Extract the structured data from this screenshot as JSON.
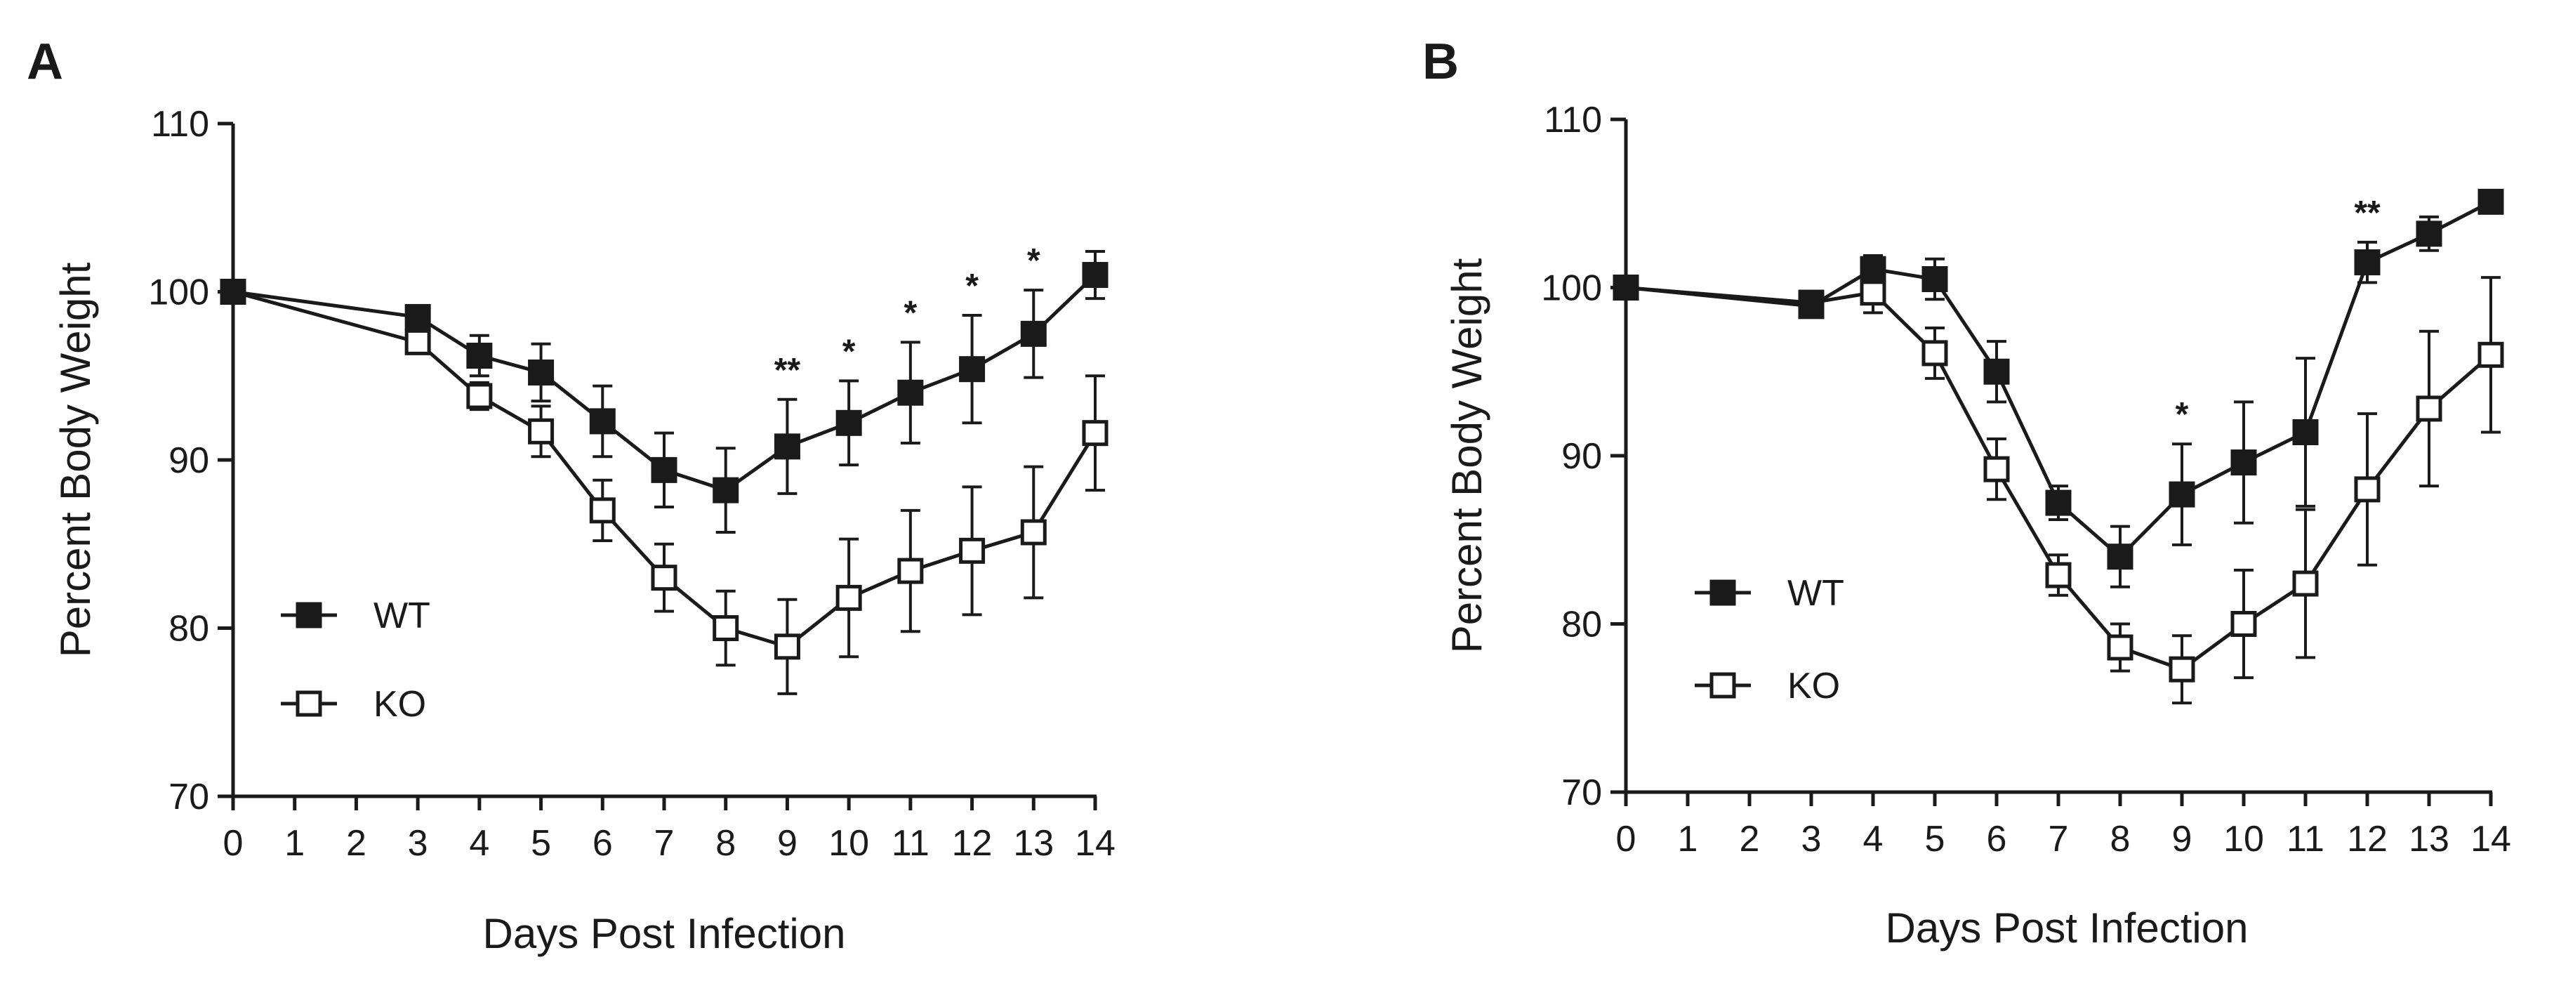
{
  "chart_data": [
    {
      "panel": "A",
      "type": "line",
      "xlabel": "Days Post Infection",
      "ylabel": "Percent Body Weight",
      "xlim": [
        0,
        14
      ],
      "ylim": [
        70,
        110
      ],
      "xticks": [
        "0",
        "1",
        "2",
        "3",
        "4",
        "5",
        "6",
        "7",
        "8",
        "9",
        "10",
        "11",
        "12",
        "13",
        "14"
      ],
      "yticks": [
        "70",
        "80",
        "90",
        "100",
        "110"
      ],
      "legend": [
        "WT",
        "KO"
      ],
      "legend_position": "lower-left",
      "series": [
        {
          "name": "WT",
          "marker": "filled-square",
          "x": [
            0,
            3,
            4,
            5,
            6,
            7,
            8,
            9,
            10,
            11,
            12,
            13,
            14
          ],
          "values": [
            100,
            98.5,
            96.2,
            95.2,
            92.3,
            89.4,
            88.2,
            90.8,
            92.2,
            94.0,
            95.4,
            97.5,
            101.0
          ],
          "err": [
            0,
            0.5,
            1.2,
            1.7,
            2.1,
            2.2,
            2.5,
            2.8,
            2.5,
            3.0,
            3.2,
            2.6,
            1.4
          ]
        },
        {
          "name": "KO",
          "marker": "open-square",
          "x": [
            0,
            3,
            4,
            5,
            6,
            7,
            8,
            9,
            10,
            11,
            12,
            13,
            14
          ],
          "values": [
            100,
            97.0,
            93.8,
            91.7,
            87.0,
            83.0,
            80.0,
            78.9,
            81.8,
            83.4,
            84.6,
            85.7,
            91.6
          ],
          "err": [
            0,
            0.5,
            0.8,
            1.5,
            1.8,
            2.0,
            2.2,
            2.8,
            3.5,
            3.6,
            3.8,
            3.9,
            3.4
          ]
        }
      ],
      "annotations": [
        {
          "x": 9,
          "label": "**"
        },
        {
          "x": 10,
          "label": "*"
        },
        {
          "x": 11,
          "label": "*"
        },
        {
          "x": 12,
          "label": "*"
        },
        {
          "x": 13,
          "label": "*"
        }
      ]
    },
    {
      "panel": "B",
      "type": "line",
      "xlabel": "Days Post Infection",
      "ylabel": "Percent Body Weight",
      "xlim": [
        0,
        14
      ],
      "ylim": [
        70,
        110
      ],
      "xticks": [
        "0",
        "1",
        "2",
        "3",
        "4",
        "5",
        "6",
        "7",
        "8",
        "9",
        "10",
        "11",
        "12",
        "13",
        "14"
      ],
      "yticks": [
        "70",
        "80",
        "90",
        "100",
        "110"
      ],
      "legend": [
        "WT",
        "KO"
      ],
      "legend_position": "lower-left",
      "series": [
        {
          "name": "WT",
          "marker": "filled-square",
          "x": [
            0,
            3,
            4,
            5,
            6,
            7,
            8,
            9,
            10,
            11,
            12,
            13,
            14
          ],
          "values": [
            100,
            98.9,
            101.1,
            100.5,
            95.0,
            87.2,
            84.0,
            87.7,
            89.6,
            91.4,
            101.5,
            103.2,
            105.1
          ],
          "err": [
            0,
            0.5,
            0.8,
            1.2,
            1.8,
            1.0,
            1.8,
            3.0,
            3.6,
            4.4,
            1.2,
            1.0,
            0.6
          ]
        },
        {
          "name": "KO",
          "marker": "open-square",
          "x": [
            0,
            3,
            4,
            5,
            6,
            7,
            8,
            9,
            10,
            11,
            12,
            13,
            14
          ],
          "values": [
            100,
            99.1,
            99.7,
            96.1,
            89.2,
            82.9,
            78.6,
            77.3,
            80.0,
            82.4,
            88.0,
            92.8,
            96.0
          ],
          "err": [
            0,
            0.5,
            1.2,
            1.5,
            1.8,
            1.2,
            1.4,
            2.0,
            3.2,
            4.4,
            4.5,
            4.6,
            4.6
          ]
        }
      ],
      "annotations": [
        {
          "x": 9,
          "label": "*"
        },
        {
          "x": 12,
          "label": "**"
        }
      ]
    }
  ]
}
